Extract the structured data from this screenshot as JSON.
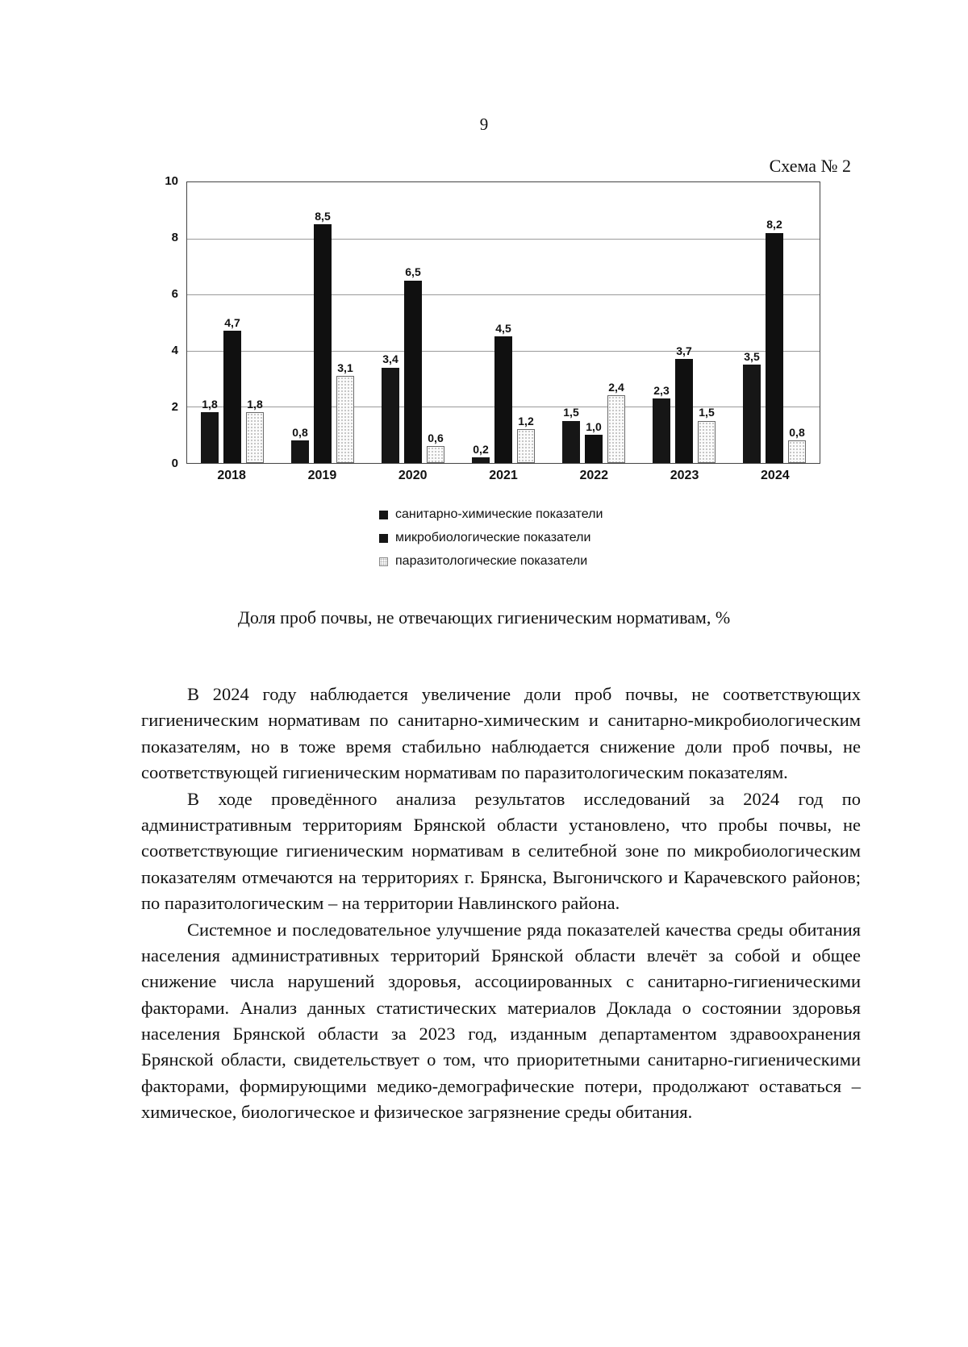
{
  "page": {
    "number": "9",
    "scheme_label": "Схема № 2"
  },
  "chart_data": {
    "type": "bar",
    "categories": [
      "2018",
      "2019",
      "2020",
      "2021",
      "2022",
      "2023",
      "2024"
    ],
    "series": [
      {
        "name": "санитарно-химические показатели",
        "values": [
          1.8,
          0.8,
          3.4,
          0.2,
          1.5,
          2.3,
          3.5
        ]
      },
      {
        "name": "микробиологические показатели",
        "values": [
          4.7,
          8.5,
          6.5,
          4.5,
          1.0,
          3.7,
          8.2
        ]
      },
      {
        "name": "паразитологические показатели",
        "values": [
          1.8,
          3.1,
          0.6,
          1.2,
          2.4,
          1.5,
          0.8
        ]
      }
    ],
    "series_colors": [
      "#161616",
      "#101010",
      "#f6f6f6"
    ],
    "ylim": [
      0,
      10
    ],
    "yticks": [
      0,
      2,
      4,
      6,
      8,
      10
    ],
    "grid": true,
    "legend_position": "bottom",
    "value_labels": true,
    "decimal_separator": ",",
    "title": "Доля проб почвы, не отвечающих гигиеническим нормативам, %"
  },
  "body": {
    "paragraphs": [
      "В 2024 году наблюдается увеличение доли проб почвы, не соответствующих гигиеническим нормативам по санитарно-химическим и санитарно-микробиологическим показателям, но в тоже время стабильно наблюдается снижение доли проб почвы, не соответствующей гигиеническим нормативам по паразитологическим показателям.",
      "В ходе проведённого анализа результатов исследований за 2024 год по административным территориям Брянской области установлено, что пробы почвы, не соответствующие гигиеническим нормативам в селитебной зоне по микробиологическим показателям отмечаются на территориях г. Брянска, Выгоничского и Карачевского районов; по паразитологическим – на территории Навлинского района.",
      "Системное и последовательное улучшение ряда показателей качества среды обитания населения административных территорий Брянской области влечёт за собой и общее снижение числа нарушений здоровья, ассоциированных с санитарно-гигиеническими факторами. Анализ данных статистических материалов Доклада о состоянии здоровья населения Брянской области за 2023 год, изданным департаментом здравоохранения Брянской области, свидетельствует о том, что приоритетными санитарно-гигиеническими факторами, формирующими медико-демографические потери, продолжают оставаться – химическое, биологическое и физическое загрязнение среды обитания."
    ]
  }
}
